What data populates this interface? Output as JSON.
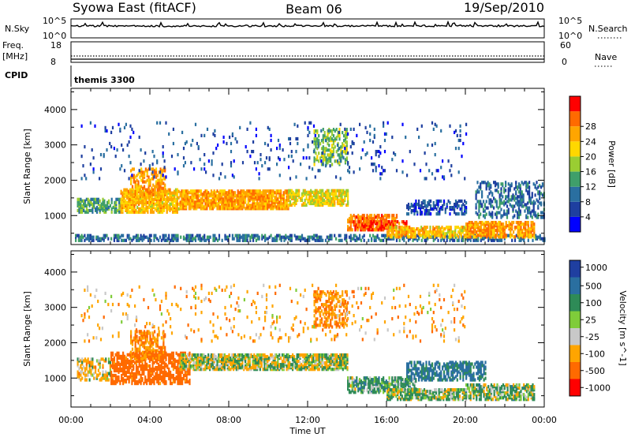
{
  "header": {
    "station": "Syowa East (fitACF)",
    "beam": "Beam 06",
    "date": "19/Sep/2010"
  },
  "strip_labels": {
    "nsky": "N.Sky",
    "nsearch": "N.Search",
    "freq_line1": "Freq.",
    "freq_line2": "[MHz]",
    "nave": "Nave",
    "cpid": "CPID",
    "cpid_value": "themis 3300"
  },
  "strip_ticks": {
    "noise_top_left": "10^5",
    "noise_bottom_left": "10^0",
    "noise_top_right": "10^5",
    "noise_bottom_right": "10^0",
    "freq_top": "18",
    "freq_bottom": "8",
    "nave_top": "60",
    "nave_bottom": "0"
  },
  "x_axis": {
    "label": "Time UT",
    "ticks": [
      "00:00",
      "04:00",
      "08:00",
      "12:00",
      "16:00",
      "20:00",
      "00:00"
    ],
    "range_hours": [
      0,
      24
    ]
  },
  "y_axis": {
    "label": "Slant Range [km]",
    "ticks": [
      "1000",
      "2000",
      "3000",
      "4000"
    ],
    "tick_values": [
      1000,
      2000,
      3000,
      4000
    ],
    "range_km": [
      180,
      4600
    ]
  },
  "power_colorbar": {
    "label": "Power [dB]",
    "ticks": [
      "4",
      "8",
      "12",
      "16",
      "20",
      "24",
      "28"
    ],
    "colors": [
      "#0000ff",
      "#1e3fa0",
      "#2a6fa0",
      "#3f9f6a",
      "#9acd32",
      "#ffd700",
      "#ffa500",
      "#ff6a00",
      "#ff0000"
    ]
  },
  "velocity_colorbar": {
    "label": "Velocity [m s^-1]",
    "ticks": [
      "1000",
      "500",
      "100",
      "25",
      "-25",
      "-100",
      "-500",
      "-1000"
    ],
    "colors": [
      "#1f3fa0",
      "#2a6fa0",
      "#2e8b57",
      "#7fcc3a",
      "#c8c8c8",
      "#ffa500",
      "#ff6a00",
      "#ff0000"
    ]
  },
  "chart_data": [
    {
      "type": "heatmap",
      "title": "Power",
      "xlabel": "Time UT",
      "ylabel": "Slant Range [km]",
      "xlim": [
        0,
        24
      ],
      "ylim": [
        180,
        4600
      ],
      "colorbar_label": "Power [dB]",
      "clim": [
        0,
        30
      ],
      "regions": [
        {
          "t0": 0.2,
          "t1": 24.0,
          "r0": 250,
          "r1": 400,
          "value": 8,
          "density": 0.45
        },
        {
          "t0": 0.3,
          "t1": 2.5,
          "r0": 1050,
          "r1": 1450,
          "value": 12,
          "density": 0.55
        },
        {
          "t0": 2.5,
          "t1": 5.5,
          "r0": 1050,
          "r1": 1700,
          "value": 20,
          "density": 0.7
        },
        {
          "t0": 3.0,
          "t1": 4.8,
          "r0": 1500,
          "r1": 2300,
          "value": 22,
          "density": 0.45
        },
        {
          "t0": 5.5,
          "t1": 11.0,
          "r0": 1150,
          "r1": 1650,
          "value": 22,
          "density": 0.75
        },
        {
          "t0": 11.0,
          "t1": 14.0,
          "r0": 1250,
          "r1": 1700,
          "value": 18,
          "density": 0.6
        },
        {
          "t0": 12.3,
          "t1": 14.0,
          "r0": 2400,
          "r1": 3400,
          "value": 14,
          "density": 0.35
        },
        {
          "t0": 14.0,
          "t1": 16.5,
          "r0": 550,
          "r1": 1000,
          "value": 24,
          "density": 0.6
        },
        {
          "t0": 14.5,
          "t1": 17.0,
          "r0": 550,
          "r1": 800,
          "value": 26,
          "density": 0.5
        },
        {
          "t0": 16.0,
          "t1": 20.0,
          "r0": 350,
          "r1": 650,
          "value": 20,
          "density": 0.6
        },
        {
          "t0": 17.0,
          "t1": 20.0,
          "r0": 1000,
          "r1": 1400,
          "value": 6,
          "density": 0.4
        },
        {
          "t0": 20.0,
          "t1": 23.5,
          "r0": 350,
          "r1": 800,
          "value": 22,
          "density": 0.65
        },
        {
          "t0": 20.5,
          "t1": 24.0,
          "r0": 900,
          "r1": 1900,
          "value": 8,
          "density": 0.3
        },
        {
          "t0": 0.5,
          "t1": 20.0,
          "r0": 2000,
          "r1": 3600,
          "value": 6,
          "density": 0.04
        }
      ]
    },
    {
      "type": "heatmap",
      "title": "Velocity",
      "xlabel": "Time UT",
      "ylabel": "Slant Range [km]",
      "xlim": [
        0,
        24
      ],
      "ylim": [
        180,
        4600
      ],
      "colorbar_label": "Velocity [m s^-1]",
      "clim": [
        -1000,
        1000
      ],
      "regions": [
        {
          "t0": 0.3,
          "t1": 2.0,
          "r0": 900,
          "r1": 1500,
          "value": -100,
          "density": 0.35
        },
        {
          "t0": 2.0,
          "t1": 6.0,
          "r0": 800,
          "r1": 1700,
          "value": -500,
          "density": 0.55
        },
        {
          "t0": 3.0,
          "t1": 4.8,
          "r0": 1500,
          "r1": 2300,
          "value": -300,
          "density": 0.45
        },
        {
          "t0": 5.5,
          "t1": 14.0,
          "r0": 1200,
          "r1": 1650,
          "value": 0,
          "density": 0.7
        },
        {
          "t0": 12.3,
          "t1": 14.0,
          "r0": 2400,
          "r1": 3400,
          "value": -300,
          "density": 0.35
        },
        {
          "t0": 14.0,
          "t1": 17.5,
          "r0": 550,
          "r1": 1000,
          "value": 150,
          "density": 0.55
        },
        {
          "t0": 16.0,
          "t1": 20.0,
          "r0": 350,
          "r1": 650,
          "value": 80,
          "density": 0.6
        },
        {
          "t0": 17.0,
          "t1": 21.0,
          "r0": 900,
          "r1": 1400,
          "value": 400,
          "density": 0.45
        },
        {
          "t0": 20.0,
          "t1": 23.5,
          "r0": 350,
          "r1": 800,
          "value": 100,
          "density": 0.6
        },
        {
          "t0": 0.5,
          "t1": 20.0,
          "r0": 2000,
          "r1": 3600,
          "value": -200,
          "density": 0.04
        }
      ]
    }
  ]
}
